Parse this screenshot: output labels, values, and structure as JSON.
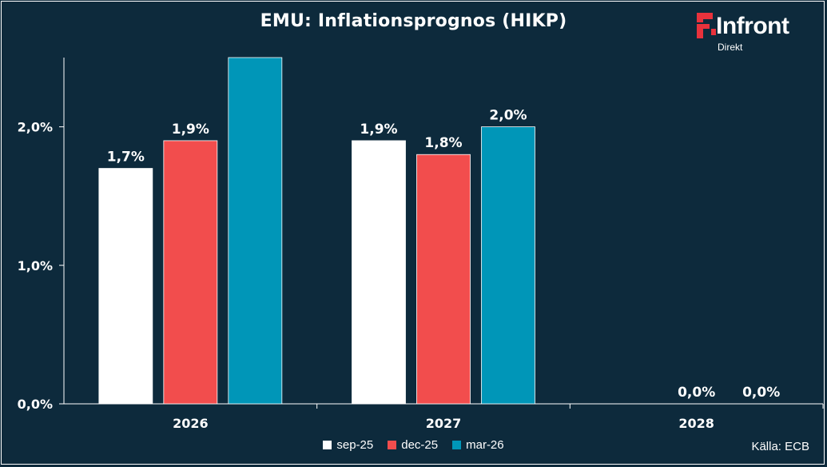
{
  "header": {
    "title": "EMU: Inflationsprognos (HIKP)",
    "logo_text": "Infront",
    "logo_sub": "Direkt"
  },
  "footer": {
    "source": "Källa:  ECB"
  },
  "colors": {
    "background": "#0d2a3c",
    "sep-25": "#ffffff",
    "dec-25": "#f24d4d",
    "mar-26": "#0096b8",
    "logo_mark": "#e8323c"
  },
  "chart_data": {
    "type": "bar",
    "categories": [
      "2026",
      "2027",
      "2028"
    ],
    "series": [
      {
        "name": "sep-25",
        "values": [
          1.7,
          1.9,
          null
        ],
        "labels": [
          "1,7%",
          "1,9%",
          ""
        ]
      },
      {
        "name": "dec-25",
        "values": [
          1.9,
          1.8,
          0.0
        ],
        "labels": [
          "1,9%",
          "1,8%",
          "0,0%"
        ]
      },
      {
        "name": "mar-26",
        "values": [
          2.5,
          2.0,
          0.0
        ],
        "labels": [
          "",
          "2,0%",
          "0,0%"
        ]
      }
    ],
    "yticks": [
      {
        "value": 0.0,
        "label": "0,0%"
      },
      {
        "value": 1.0,
        "label": "1,0%"
      },
      {
        "value": 2.0,
        "label": "2,0%"
      }
    ],
    "ylim": [
      0,
      2.5
    ],
    "xlabel": "",
    "ylabel": "",
    "grid": false,
    "legend_position": "bottom"
  }
}
